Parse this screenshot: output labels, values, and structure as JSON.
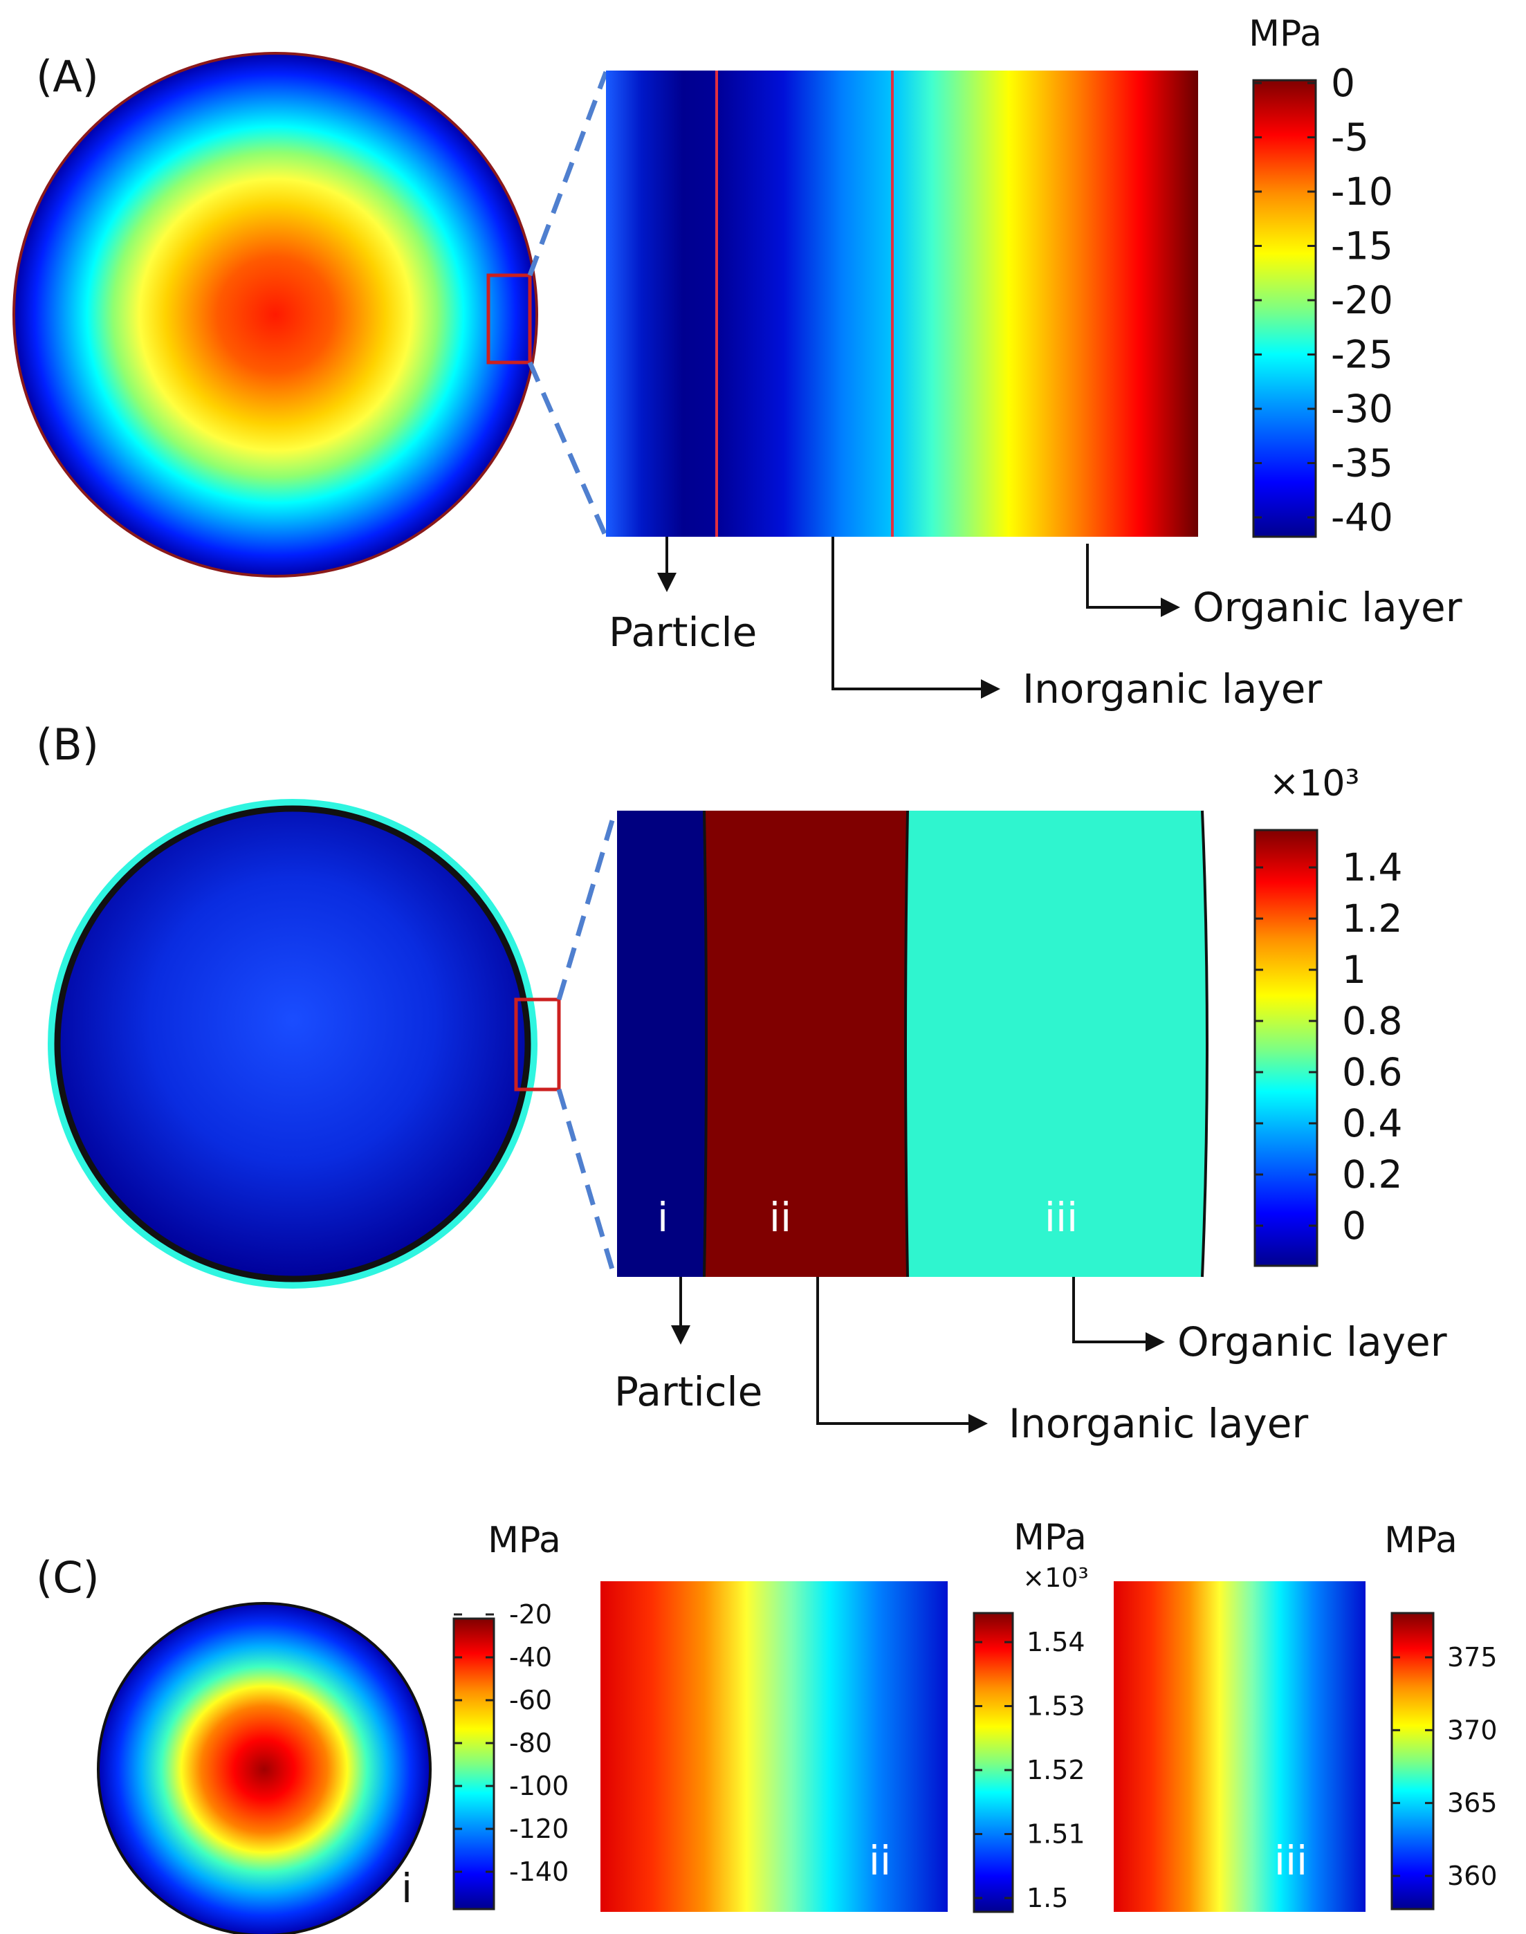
{
  "panels": {
    "A": {
      "label": "(A)",
      "unit": "MPa",
      "ticks": [
        "0",
        "-5",
        "-10",
        "-15",
        "-20",
        "-25",
        "-30",
        "-35",
        "-40"
      ],
      "callouts": {
        "particle": "Particle",
        "inorganic": "Inorganic layer",
        "organic": "Organic layer"
      }
    },
    "B": {
      "label": "(B)",
      "unit": "×10³",
      "ticks": [
        "1.4",
        "1.2",
        "1",
        "0.8",
        "0.6",
        "0.4",
        "0.2",
        "0"
      ],
      "regions": [
        "i",
        "ii",
        "iii"
      ],
      "callouts": {
        "particle": "Particle",
        "inorganic": "Inorganic layer",
        "organic": "Organic layer"
      }
    },
    "C": {
      "label": "(C)",
      "sub_i": {
        "label": "i",
        "unit": "MPa",
        "ticks": [
          "-20",
          "-40",
          "-60",
          "-80",
          "-100",
          "-120",
          "-140"
        ]
      },
      "sub_ii": {
        "label": "ii",
        "unit": "MPa",
        "exponent": "×10³",
        "ticks": [
          "1.54",
          "1.53",
          "1.52",
          "1.51",
          "1.5"
        ]
      },
      "sub_iii": {
        "label": "iii",
        "unit": "MPa",
        "ticks": [
          "375",
          "370",
          "365",
          "360"
        ]
      }
    }
  },
  "colors": {
    "jet": [
      "#00008f",
      "#0000ff",
      "#00a0ff",
      "#00ffff",
      "#80ff80",
      "#ffff00",
      "#ff9000",
      "#ff0000",
      "#800000"
    ],
    "dash": "#4f7fcf",
    "box": "#cc2020",
    "region_i": "#000080",
    "region_ii": "#800000",
    "region_iii": "#2ff5cf"
  }
}
